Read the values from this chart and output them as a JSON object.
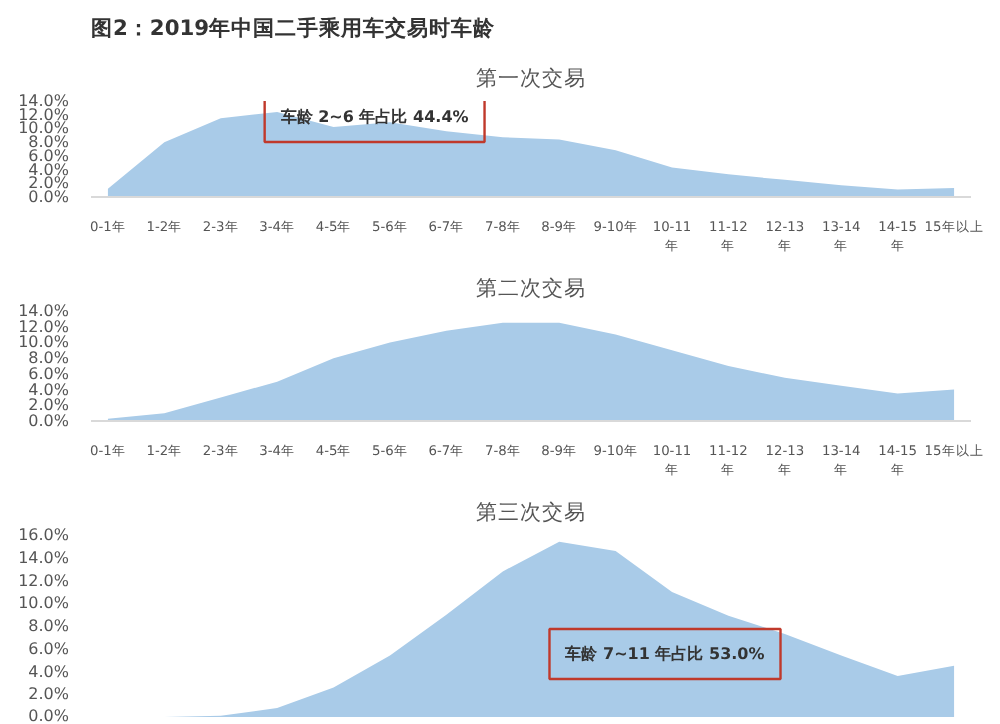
{
  "chart_data": [
    {
      "type": "area",
      "title": "图2：2019年中国二手乘用车交易时车龄",
      "subtitle": "第一次交易",
      "categories": [
        "0-1年",
        "1-2年",
        "2-3年",
        "3-4年",
        "4-5年",
        "5-6年",
        "6-7年",
        "7-8年",
        "8-9年",
        "9-10年",
        "10-11年",
        "11-12年",
        "12-13年",
        "13-14年",
        "14-15年",
        "15年以上"
      ],
      "values": [
        1.2,
        8.0,
        11.5,
        12.4,
        10.2,
        10.9,
        9.6,
        8.7,
        8.4,
        6.8,
        4.3,
        3.3,
        2.5,
        1.7,
        1.1,
        1.3
      ],
      "color": "#a9cbe8",
      "ylim": [
        0,
        14
      ],
      "yticks": [
        {
          "value": 0,
          "label": "0.0%"
        },
        {
          "value": 2,
          "label": "2.0%"
        },
        {
          "value": 4,
          "label": "4.0%"
        },
        {
          "value": 6,
          "label": "6.0%"
        },
        {
          "value": 8,
          "label": "8.0%"
        },
        {
          "value": 10,
          "label": "10.0%"
        },
        {
          "value": 12,
          "label": "12.0%"
        },
        {
          "value": 14,
          "label": "14.0%"
        }
      ],
      "annotations": [
        "车龄 2~6 年占比 44.4%"
      ]
    },
    {
      "type": "area",
      "title": "第二次交易",
      "categories": [
        "0-1年",
        "1-2年",
        "2-3年",
        "3-4年",
        "4-5年",
        "5-6年",
        "6-7年",
        "7-8年",
        "8-9年",
        "9-10年",
        "10-11年",
        "11-12年",
        "12-13年",
        "13-14年",
        "14-15年",
        "15年以上"
      ],
      "values": [
        0.3,
        1.0,
        3.0,
        5.0,
        8.0,
        10.0,
        11.5,
        12.5,
        12.5,
        11.0,
        9.0,
        7.0,
        5.5,
        4.5,
        3.5,
        4.0
      ],
      "color": "#a9cbe8",
      "ylim": [
        0,
        14
      ],
      "yticks": [
        {
          "value": 0,
          "label": "0.0%"
        },
        {
          "value": 2,
          "label": "2.0%"
        },
        {
          "value": 4,
          "label": "4.0%"
        },
        {
          "value": 6,
          "label": "6.0%"
        },
        {
          "value": 8,
          "label": "8.0%"
        },
        {
          "value": 10,
          "label": "10.0%"
        },
        {
          "value": 12,
          "label": "12.0%"
        },
        {
          "value": 14,
          "label": "14.0%"
        }
      ]
    },
    {
      "type": "area",
      "title": "第三次交易",
      "categories": [
        "0-1年",
        "1-2年",
        "2-3年",
        "3-4年",
        "4-5年",
        "5-6年",
        "6-7年",
        "7-8年",
        "8-9年",
        "9-10年",
        "10-11年",
        "11-12年",
        "12-13年",
        "13-14年",
        "14-15年",
        "15年以上"
      ],
      "values": [
        0,
        0,
        0.1,
        0.8,
        2.6,
        5.4,
        9.0,
        12.8,
        15.4,
        14.6,
        11.0,
        8.9,
        7.3,
        5.4,
        3.6,
        4.5
      ],
      "color": "#a9cbe8",
      "ylim": [
        0,
        16
      ],
      "yticks": [
        {
          "value": 0,
          "label": "0.0%"
        },
        {
          "value": 2,
          "label": "2.0%"
        },
        {
          "value": 4,
          "label": "4.0%"
        },
        {
          "value": 6,
          "label": "6.0%"
        },
        {
          "value": 8,
          "label": "8.0%"
        },
        {
          "value": 10,
          "label": "10.0%"
        },
        {
          "value": 12,
          "label": "12.0%"
        },
        {
          "value": 14,
          "label": "14.0%"
        },
        {
          "value": 16,
          "label": "16.0%"
        }
      ],
      "tick_labels": "y",
      "annotations": [
        "车龄 7~11 年占比 53.0%"
      ]
    }
  ]
}
